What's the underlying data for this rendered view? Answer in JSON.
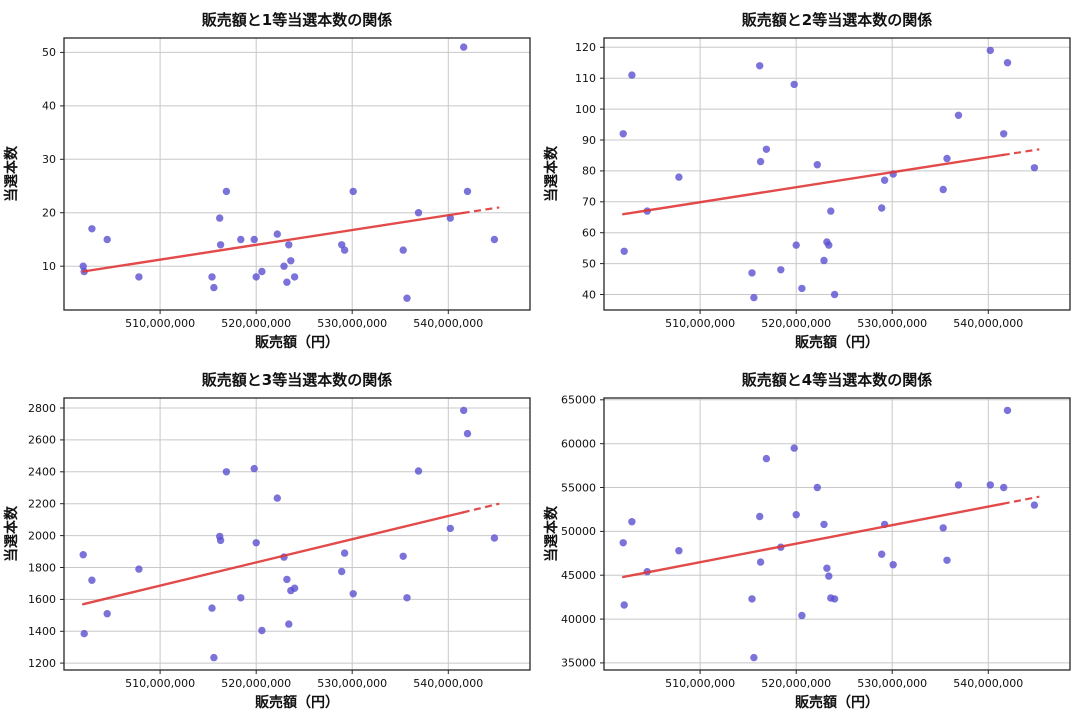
{
  "page": {
    "background": "#ffffff"
  },
  "style": {
    "scatter_color": "#5a50d0",
    "scatter_opacity": 0.8,
    "trend_color": "#e03636",
    "grid_color": "#c8c8c8",
    "spine_color": "#262626",
    "text_color": "#111111"
  },
  "chart_data": [
    {
      "type": "scatter",
      "title": "販売額と1等当選本数の関係",
      "xlabel": "販売額（円）",
      "ylabel": "当選本数",
      "xlim": [
        500000000,
        548500000
      ],
      "ylim": [
        1.8,
        52.7
      ],
      "x_ticks": [
        510000000,
        520000000,
        530000000,
        540000000
      ],
      "x_tick_labels": [
        "510,000,000",
        "520,000,000",
        "530,000,000",
        "540,000,000"
      ],
      "y_ticks": [
        10,
        20,
        30,
        40,
        50
      ],
      "x": [
        502000000,
        502100000,
        502900000,
        504500000,
        507800000,
        515400000,
        515600000,
        516200000,
        516300000,
        516900000,
        518400000,
        519800000,
        520000000,
        520600000,
        522200000,
        522900000,
        523200000,
        523400000,
        523600000,
        524000000,
        528900000,
        529200000,
        530100000,
        535300000,
        535700000,
        536900000,
        540200000,
        541600000,
        542000000,
        544800000
      ],
      "y": [
        10,
        9,
        17,
        15,
        8,
        8,
        6,
        19,
        14,
        24,
        15,
        15,
        8,
        9,
        16,
        10,
        7,
        14,
        11,
        8,
        14,
        13,
        24,
        13,
        4,
        20,
        19,
        51,
        24,
        15
      ],
      "trend": {
        "x0": 502000000,
        "y0": 9,
        "x1": 545300000,
        "y1": 21,
        "dash_from": 541500000
      }
    },
    {
      "type": "scatter",
      "title": "販売額と2等当選本数の関係",
      "xlabel": "販売額（円）",
      "ylabel": "当選本数",
      "xlim": [
        500000000,
        548500000
      ],
      "ylim": [
        35,
        123
      ],
      "x_ticks": [
        510000000,
        520000000,
        530000000,
        540000000
      ],
      "x_tick_labels": [
        "510,000,000",
        "520,000,000",
        "530,000,000",
        "540,000,000"
      ],
      "y_ticks": [
        40,
        50,
        60,
        70,
        80,
        90,
        100,
        110,
        120
      ],
      "x": [
        502000000,
        502100000,
        502900000,
        504500000,
        507800000,
        515400000,
        515600000,
        516200000,
        516300000,
        516900000,
        518400000,
        519800000,
        520000000,
        520600000,
        522200000,
        522900000,
        523200000,
        523400000,
        523600000,
        524000000,
        528900000,
        529200000,
        530100000,
        535300000,
        535700000,
        536900000,
        540200000,
        541600000,
        542000000,
        544800000
      ],
      "y": [
        92,
        54,
        111,
        67,
        78,
        47,
        39,
        114,
        83,
        87,
        48,
        108,
        56,
        42,
        82,
        51,
        57,
        56,
        67,
        40,
        68,
        77,
        79,
        74,
        84,
        98,
        119,
        92,
        115,
        81
      ],
      "trend": {
        "x0": 502000000,
        "y0": 66,
        "x1": 545300000,
        "y1": 87,
        "dash_from": 541500000
      }
    },
    {
      "type": "scatter",
      "title": "販売額と3等当選本数の関係",
      "xlabel": "販売額（円）",
      "ylabel": "当選本数",
      "xlim": [
        500000000,
        548500000
      ],
      "ylim": [
        1157,
        2863
      ],
      "x_ticks": [
        510000000,
        520000000,
        530000000,
        540000000
      ],
      "x_tick_labels": [
        "510,000,000",
        "520,000,000",
        "530,000,000",
        "540,000,000"
      ],
      "y_ticks": [
        1200,
        1400,
        1600,
        1800,
        2000,
        2200,
        2400,
        2600,
        2800
      ],
      "x": [
        502000000,
        502100000,
        502900000,
        504500000,
        507800000,
        515400000,
        515600000,
        516200000,
        516300000,
        516900000,
        518400000,
        519800000,
        520000000,
        520600000,
        522200000,
        522900000,
        523200000,
        523400000,
        523600000,
        524000000,
        528900000,
        529200000,
        530100000,
        535300000,
        535700000,
        536900000,
        540200000,
        541600000,
        542000000,
        544800000
      ],
      "y": [
        1880,
        1385,
        1720,
        1510,
        1790,
        1545,
        1235,
        1995,
        1970,
        2400,
        1610,
        2420,
        1955,
        1405,
        2235,
        1865,
        1725,
        1445,
        1655,
        1670,
        1775,
        1890,
        1635,
        1870,
        1610,
        2405,
        2045,
        2785,
        2640,
        1985
      ],
      "trend": {
        "x0": 502000000,
        "y0": 1570,
        "x1": 545300000,
        "y1": 2200,
        "dash_from": 541500000
      }
    },
    {
      "type": "scatter",
      "title": "販売額と4等当選本数の関係",
      "xlabel": "販売額（円）",
      "ylabel": "当選本数",
      "xlim": [
        500000000,
        548500000
      ],
      "ylim": [
        34190,
        65210
      ],
      "x_ticks": [
        510000000,
        520000000,
        530000000,
        540000000
      ],
      "x_tick_labels": [
        "510,000,000",
        "520,000,000",
        "530,000,000",
        "540,000,000"
      ],
      "y_ticks": [
        35000,
        40000,
        45000,
        50000,
        55000,
        60000,
        65000
      ],
      "x": [
        502000000,
        502100000,
        502900000,
        504500000,
        507800000,
        515400000,
        515600000,
        516200000,
        516300000,
        516900000,
        518400000,
        519800000,
        520000000,
        520600000,
        522200000,
        522900000,
        523200000,
        523400000,
        523600000,
        524000000,
        528900000,
        529200000,
        530100000,
        535300000,
        535700000,
        536900000,
        540200000,
        541600000,
        542000000,
        544800000
      ],
      "y": [
        48700,
        41600,
        51100,
        45400,
        47800,
        42300,
        35600,
        51700,
        46500,
        58300,
        48200,
        59500,
        51900,
        40400,
        55000,
        50800,
        45800,
        44900,
        42400,
        42300,
        47400,
        50800,
        46200,
        50400,
        46700,
        55300,
        55300,
        55000,
        63800,
        53000
      ],
      "trend": {
        "x0": 502000000,
        "y0": 44800,
        "x1": 545300000,
        "y1": 53950,
        "dash_from": 541500000
      }
    }
  ]
}
